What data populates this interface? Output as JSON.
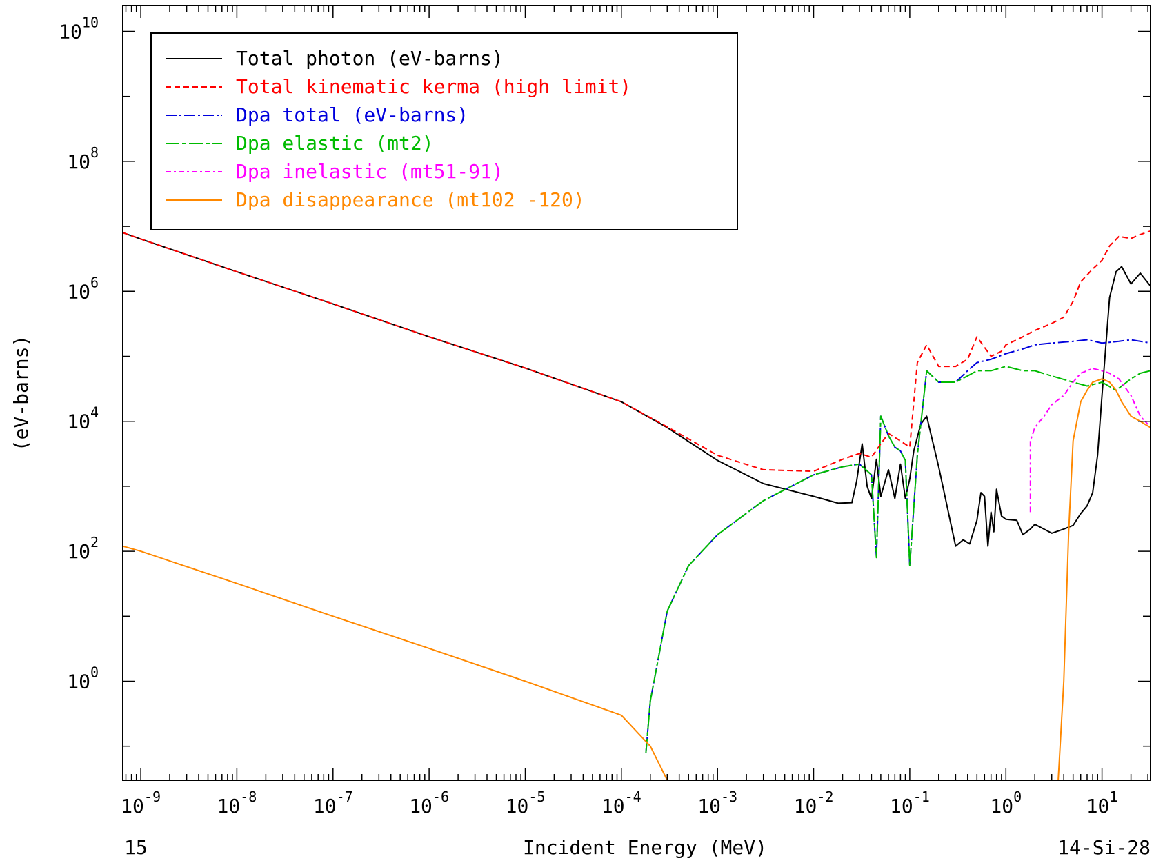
{
  "chart_data": {
    "type": "line",
    "title": "",
    "xlabel": "Incident Energy (MeV)",
    "ylabel": "(eV-barns)",
    "x_scale": "log",
    "y_scale": "log",
    "xlim": [
      6.5e-10,
      32
    ],
    "ylim": [
      0.03,
      25000000000.0
    ],
    "x_ticks": [
      {
        "base": "10",
        "exp": "-9",
        "value": 1e-09
      },
      {
        "base": "10",
        "exp": "-8",
        "value": 1e-08
      },
      {
        "base": "10",
        "exp": "-7",
        "value": 1e-07
      },
      {
        "base": "10",
        "exp": "-6",
        "value": 1e-06
      },
      {
        "base": "10",
        "exp": "-5",
        "value": 1e-05
      },
      {
        "base": "10",
        "exp": "-4",
        "value": 0.0001
      },
      {
        "base": "10",
        "exp": "-3",
        "value": 0.001
      },
      {
        "base": "10",
        "exp": "-2",
        "value": 0.01
      },
      {
        "base": "10",
        "exp": "-1",
        "value": 0.1
      },
      {
        "base": "10",
        "exp": "0",
        "value": 1
      },
      {
        "base": "10",
        "exp": "1",
        "value": 10
      }
    ],
    "y_ticks": [
      {
        "base": "10",
        "exp": "0",
        "value": 1
      },
      {
        "base": "10",
        "exp": "2",
        "value": 100
      },
      {
        "base": "10",
        "exp": "4",
        "value": 10000
      },
      {
        "base": "10",
        "exp": "6",
        "value": 1000000
      },
      {
        "base": "10",
        "exp": "8",
        "value": 100000000
      },
      {
        "base": "10",
        "exp": "10",
        "value": 10000000000
      }
    ],
    "grid": false,
    "legend_position": "top-left",
    "footer_left": "15",
    "footer_right": "14-Si-28",
    "series": [
      {
        "name": "Total photon (eV-barns)",
        "color": "#000000",
        "dash": "solid",
        "x": [
          6.5e-10,
          1e-09,
          1e-08,
          1e-07,
          1e-06,
          1e-05,
          0.0001,
          0.0003,
          0.001,
          0.003,
          0.01,
          0.018,
          0.025,
          0.028,
          0.032,
          0.036,
          0.04,
          0.045,
          0.05,
          0.06,
          0.07,
          0.08,
          0.09,
          0.1,
          0.11,
          0.13,
          0.15,
          0.2,
          0.3,
          0.36,
          0.42,
          0.5,
          0.55,
          0.6,
          0.65,
          0.7,
          0.75,
          0.8,
          0.9,
          1.0,
          1.3,
          1.5,
          1.8,
          2.0,
          3.0,
          4.0,
          5.0,
          6.0,
          7.0,
          8.0,
          9.0,
          10.0,
          12.0,
          14.0,
          16.0,
          20.0,
          25.0,
          32.0
        ],
        "y": [
          8000000,
          6400000,
          2000000,
          640000,
          200000,
          66000,
          20000,
          8000,
          2500,
          1100,
          700,
          550,
          560,
          1200,
          4500,
          1000,
          650,
          2600,
          700,
          1800,
          650,
          2200,
          650,
          1300,
          3500,
          9000,
          12000,
          2000,
          120,
          150,
          130,
          300,
          800,
          700,
          120,
          400,
          200,
          900,
          350,
          310,
          300,
          180,
          220,
          260,
          190,
          220,
          250,
          380,
          500,
          800,
          3000,
          25000,
          800000,
          2000000,
          2400000,
          1300000,
          1900000,
          1200000
        ]
      },
      {
        "name": "Total kinematic kerma (high limit)",
        "color": "#ff0000",
        "dash": "8,5",
        "x": [
          6.5e-10,
          1e-09,
          1e-08,
          1e-07,
          1e-06,
          1e-05,
          0.0001,
          0.0003,
          0.001,
          0.003,
          0.01,
          0.02,
          0.03,
          0.04,
          0.05,
          0.06,
          0.08,
          0.1,
          0.12,
          0.15,
          0.2,
          0.3,
          0.4,
          0.5,
          0.7,
          0.9,
          1.0,
          1.3,
          1.5,
          2.0,
          3.0,
          4.0,
          5.0,
          6.0,
          8.0,
          10.0,
          12.0,
          15.0,
          20.0,
          25.0,
          32.0
        ],
        "y": [
          8000000,
          6400000,
          2000000,
          640000,
          200000,
          66000,
          20000,
          8200,
          3000,
          1800,
          1700,
          2600,
          3200,
          2800,
          4500,
          6500,
          5000,
          4000,
          80000,
          150000,
          70000,
          70000,
          90000,
          200000,
          100000,
          120000,
          150000,
          180000,
          200000,
          250000,
          320000,
          400000,
          700000,
          1400000,
          2200000,
          3000000,
          5000000,
          7000000,
          6500000,
          7500000,
          8500000
        ]
      },
      {
        "name": "Dpa total (eV-barns)",
        "color": "#0000dd",
        "dash": "16,4,3,4",
        "x": [
          0.00018,
          0.0002,
          0.0003,
          0.0005,
          0.001,
          0.003,
          0.01,
          0.02,
          0.03,
          0.04,
          0.045,
          0.05,
          0.06,
          0.07,
          0.08,
          0.09,
          0.1,
          0.12,
          0.15,
          0.2,
          0.3,
          0.4,
          0.5,
          0.7,
          1.0,
          1.5,
          2.0,
          3.0,
          5.0,
          7.0,
          10.0,
          15.0,
          20.0,
          32.0
        ],
        "y": [
          0.08,
          0.5,
          12,
          60,
          180,
          600,
          1500,
          2000,
          2200,
          1500,
          80,
          12000,
          6000,
          4000,
          3500,
          2500,
          60,
          3000,
          60000,
          40000,
          40000,
          60000,
          80000,
          90000,
          110000,
          130000,
          150000,
          160000,
          170000,
          180000,
          160000,
          170000,
          180000,
          160000
        ]
      },
      {
        "name": "Dpa elastic (mt2)",
        "color": "#00bb00",
        "dash": "20,4,6,4",
        "x": [
          0.00018,
          0.0002,
          0.0003,
          0.0005,
          0.001,
          0.003,
          0.01,
          0.02,
          0.03,
          0.04,
          0.045,
          0.05,
          0.06,
          0.07,
          0.08,
          0.09,
          0.1,
          0.12,
          0.15,
          0.2,
          0.3,
          0.4,
          0.5,
          0.7,
          1.0,
          1.5,
          2.0,
          3.0,
          5.0,
          7.0,
          10.0,
          14.0,
          20.0,
          25.0,
          32.0
        ],
        "y": [
          0.08,
          0.5,
          12,
          60,
          180,
          600,
          1500,
          2000,
          2200,
          1500,
          80,
          12000,
          6000,
          4000,
          3500,
          2500,
          60,
          3000,
          60000,
          40000,
          40000,
          50000,
          60000,
          60000,
          70000,
          60000,
          60000,
          50000,
          40000,
          35000,
          40000,
          30000,
          45000,
          55000,
          60000
        ]
      },
      {
        "name": "Dpa inelastic (mt51-91)",
        "color": "#ff00ff",
        "dash": "8,4,3,4",
        "x": [
          1.8,
          1.8,
          2.0,
          2.5,
          3.0,
          4.0,
          5.0,
          6.0,
          7.0,
          8.0,
          10.0,
          12.0,
          15.0,
          20.0,
          25.0,
          30.0
        ],
        "y": [
          400,
          5000,
          8000,
          12000,
          18000,
          25000,
          40000,
          55000,
          60000,
          65000,
          60000,
          55000,
          45000,
          25000,
          12000,
          9000
        ]
      },
      {
        "name": "Dpa disappearance (mt102 -120)",
        "color": "#ff8800",
        "dash": "solid",
        "x": [
          6.5e-10,
          1e-09,
          1e-08,
          1e-07,
          1e-06,
          1e-05,
          0.0001,
          0.0002,
          0.0003,
          3.5,
          4.0,
          4.5,
          5.0,
          6.0,
          7.0,
          8.0,
          10.0,
          12.0,
          14.0,
          16.0,
          20.0,
          25.0,
          28.0,
          32.0
        ],
        "y": [
          120,
          100,
          32,
          10,
          3.2,
          1.0,
          0.3,
          0.1,
          0.03,
          0.03,
          1,
          200,
          5000,
          20000,
          30000,
          40000,
          45000,
          40000,
          30000,
          20000,
          12000,
          10000,
          9000,
          8000
        ]
      }
    ]
  }
}
